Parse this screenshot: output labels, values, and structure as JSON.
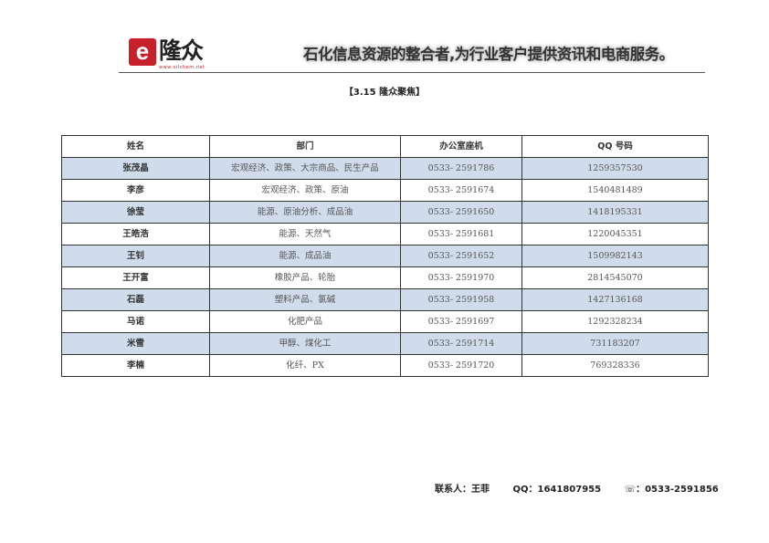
{
  "header": {
    "logo_mark": "e",
    "logo_name": "隆众",
    "logo_url": "www.oilchem.net",
    "slogan": "石化信息资源的整合者,为行业客户提供资讯和电商服务。"
  },
  "section_title": "【3.15 隆众聚焦】",
  "table": {
    "columns": [
      "姓名",
      "部门",
      "办公室座机",
      "QQ 号码"
    ],
    "rows": [
      [
        "张茂晶",
        "宏观经济、政策、大宗商品、民生产品",
        "0533- 2591786",
        "1259357530"
      ],
      [
        "李彦",
        "宏观经济、政策、原油",
        "0533- 2591674",
        "1540481489"
      ],
      [
        "徐莹",
        "能源、原油分析、成品油",
        "0533- 2591650",
        "1418195331"
      ],
      [
        "王皓浩",
        "能源、天然气",
        "0533- 2591681",
        "1220045351"
      ],
      [
        "王钊",
        "能源、成品油",
        "0533- 2591652",
        "1509982143"
      ],
      [
        "王开富",
        "橡胶产品、轮胎",
        "0533- 2591970",
        "2814545070"
      ],
      [
        "石磊",
        "塑料产品、氯碱",
        "0533- 2591958",
        "1427136168"
      ],
      [
        "马诺",
        "化肥产品",
        "0533- 2591697",
        "1292328234"
      ],
      [
        "米雪",
        "甲醇、煤化工",
        "0533- 2591714",
        "731183207"
      ],
      [
        "李楠",
        "化纤、PX",
        "0533- 2591720",
        "769328336"
      ]
    ]
  },
  "footer": {
    "contact": "联系人：王菲",
    "qq": "QQ：1641807955",
    "phone": "☏：0533-2591856"
  },
  "colors": {
    "alt_row": "#d0dcec",
    "logo_red": "#c8202a"
  }
}
